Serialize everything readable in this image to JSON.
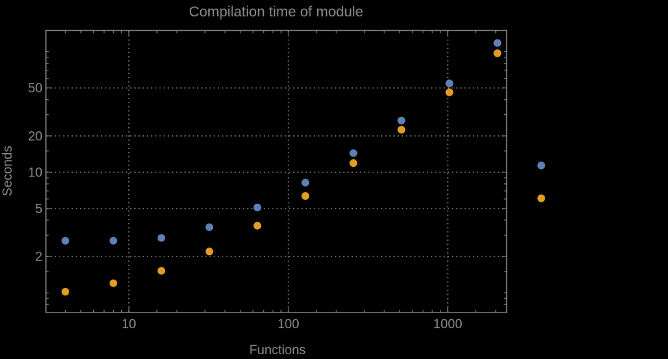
{
  "style": {
    "background": "#000000",
    "text_color": "#8a8a8a",
    "frame_color": "#7f7f7f",
    "grid_color": "#828282"
  },
  "chart_data": {
    "type": "scatter",
    "title": "Compilation time of module",
    "xlabel": "Functions",
    "ylabel": "Seconds",
    "x_scale": "log",
    "y_scale": "log",
    "grid": true,
    "xlim": [
      3.02,
      2340
    ],
    "ylim": [
      0.686,
      150
    ],
    "x_major_ticks": [
      10,
      100,
      1000
    ],
    "y_major_ticks": [
      2,
      5,
      10,
      20,
      50
    ],
    "x": [
      4,
      8,
      16,
      32,
      64,
      128,
      256,
      512,
      1024,
      2048
    ],
    "series": [
      {
        "name": "series-1-blue",
        "color": "#5e81b5",
        "values": [
          2.7,
          2.7,
          2.85,
          3.5,
          5.1,
          8.2,
          14.4,
          26.8,
          54.5,
          118
        ]
      },
      {
        "name": "series-2-orange",
        "color": "#e09c24",
        "values": [
          1.02,
          1.2,
          1.52,
          2.2,
          3.6,
          6.35,
          11.9,
          22.5,
          46,
          97
        ]
      }
    ],
    "legend": {
      "position": "right-outside",
      "markers": [
        {
          "series": "series-1-blue",
          "color": "#5e81b5",
          "label": ""
        },
        {
          "series": "series-2-orange",
          "color": "#e09c24",
          "label": ""
        }
      ]
    }
  }
}
